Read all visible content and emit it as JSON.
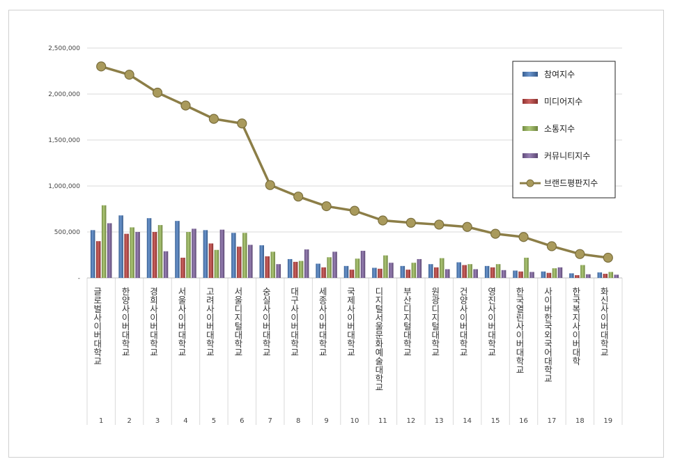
{
  "chart_data": {
    "type": "bar",
    "title": "",
    "xlabel": "",
    "ylabel": "",
    "ylim": [
      0,
      2500000
    ],
    "yticks": [
      "-",
      "500,000",
      "1,000,000",
      "1,500,000",
      "2,000,000",
      "2,500,000"
    ],
    "ranks": [
      "1",
      "2",
      "3",
      "4",
      "5",
      "6",
      "7",
      "8",
      "9",
      "10",
      "11",
      "12",
      "13",
      "14",
      "15",
      "16",
      "17",
      "18",
      "19"
    ],
    "categories": [
      "글로벌사이버대학교",
      "한양사이버대학교",
      "경희사이버대학교",
      "서울사이버대학교",
      "고려사이버대학교",
      "서울디지털대학교",
      "숭실사이버대학교",
      "대구사이버대학교",
      "세종사이버대학교",
      "국제사이버대학교",
      "디지털서울문화예술대학교",
      "부산디지털대학교",
      "원광디지털대학교",
      "건양사이버대학교",
      "영진사이버대학교",
      "한국열린사이버대학교",
      "사이버한국외국어대학교",
      "한국복지사이버대학",
      "화신사이버대학교"
    ],
    "series": [
      {
        "name": "참여지수",
        "type": "bar",
        "color": "#4A7EC2",
        "values": [
          520000,
          680000,
          650000,
          620000,
          520000,
          490000,
          355000,
          205000,
          155000,
          130000,
          110000,
          130000,
          150000,
          170000,
          130000,
          80000,
          70000,
          50000,
          60000
        ]
      },
      {
        "name": "미디어지수",
        "type": "bar",
        "color": "#C0413E",
        "values": [
          400000,
          480000,
          500000,
          220000,
          375000,
          340000,
          235000,
          175000,
          115000,
          90000,
          100000,
          90000,
          115000,
          140000,
          115000,
          70000,
          55000,
          30000,
          45000
        ]
      },
      {
        "name": "소통지수",
        "type": "bar",
        "color": "#9BBB59",
        "values": [
          790000,
          550000,
          575000,
          500000,
          305000,
          490000,
          285000,
          185000,
          225000,
          210000,
          245000,
          165000,
          215000,
          150000,
          150000,
          220000,
          105000,
          140000,
          65000
        ]
      },
      {
        "name": "커뮤니티지수",
        "type": "bar",
        "color": "#8064A2",
        "values": [
          595000,
          500000,
          290000,
          535000,
          525000,
          360000,
          150000,
          310000,
          285000,
          295000,
          165000,
          205000,
          95000,
          95000,
          85000,
          65000,
          115000,
          40000,
          35000
        ]
      },
      {
        "name": "브랜드평판지수",
        "type": "line",
        "color": "#8C7E47",
        "values": [
          2300000,
          2210000,
          2015000,
          1875000,
          1730000,
          1680000,
          1010000,
          885000,
          780000,
          730000,
          625000,
          600000,
          580000,
          555000,
          480000,
          445000,
          345000,
          260000,
          220000
        ]
      }
    ],
    "legend_position": "top-right",
    "grid": true
  }
}
